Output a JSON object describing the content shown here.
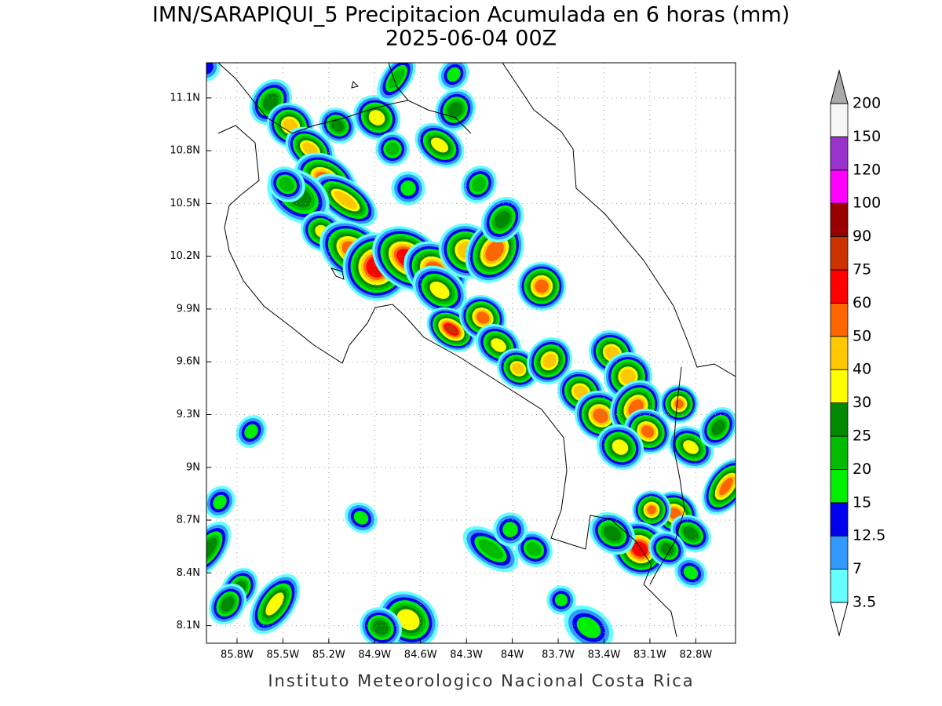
{
  "map": {
    "title": "IMN/SARAPIQUI_5 Precipitacion Acumulada en 6 horas (mm)",
    "subtitle": "2025-06-04 00Z",
    "footer": "Instituto Meteorologico Nacional Costa Rica",
    "xlim": [
      -86.0,
      -82.54
    ],
    "ylim": [
      8.0,
      11.3
    ],
    "xticks": [
      {
        "value": -85.8,
        "label": "85.8W"
      },
      {
        "value": -85.5,
        "label": "85.5W"
      },
      {
        "value": -85.2,
        "label": "85.2W"
      },
      {
        "value": -84.9,
        "label": "84.9W"
      },
      {
        "value": -84.6,
        "label": "84.6W"
      },
      {
        "value": -84.3,
        "label": "84.3W"
      },
      {
        "value": -84,
        "label": "84W"
      },
      {
        "value": -83.7,
        "label": "83.7W"
      },
      {
        "value": -83.4,
        "label": "83.4W"
      },
      {
        "value": -83.1,
        "label": "83.1W"
      },
      {
        "value": -82.8,
        "label": "82.8W"
      }
    ],
    "yticks": [
      {
        "value": 8.1,
        "label": "8.1N"
      },
      {
        "value": 8.4,
        "label": "8.4N"
      },
      {
        "value": 8.7,
        "label": "8.7N"
      },
      {
        "value": 9,
        "label": "9N"
      },
      {
        "value": 9.3,
        "label": "9.3N"
      },
      {
        "value": 9.6,
        "label": "9.6N"
      },
      {
        "value": 9.9,
        "label": "9.9N"
      },
      {
        "value": 10.2,
        "label": "10.2N"
      },
      {
        "value": 10.5,
        "label": "10.5N"
      },
      {
        "value": 10.8,
        "label": "10.8N"
      },
      {
        "value": 11.1,
        "label": "11.1N"
      }
    ],
    "grid": true,
    "colorbar": {
      "levels": [
        3.5,
        7,
        12.5,
        15,
        20,
        25,
        30,
        40,
        50,
        60,
        75,
        90,
        100,
        120,
        150,
        200
      ],
      "colors": [
        "#66ffff",
        "#3399ff",
        "#0000ee",
        "#00ee00",
        "#00bb00",
        "#008800",
        "#ffff00",
        "#ffc800",
        "#ff6600",
        "#ff0000",
        "#cc3300",
        "#990000",
        "#ff00ff",
        "#9933cc",
        "#f5f5f5"
      ],
      "under_color": "#ffffff",
      "over_color": "#aaaaaa"
    }
  }
}
